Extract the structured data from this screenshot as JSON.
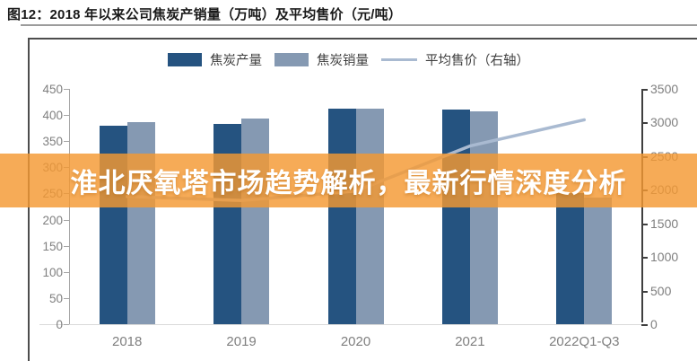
{
  "figure": {
    "title": "图12：2018 年以来公司焦炭产销量（万吨）及平均售价（元/吨）"
  },
  "overlay": {
    "text": "淮北厌氧塔市场趋势解析，最新行情深度分析",
    "background_color": "#F49832",
    "background_opacity": 0.82,
    "text_color": "#FFFFFF"
  },
  "legend": {
    "items": [
      {
        "label": "焦炭产量",
        "swatch": "bar",
        "color": "#255380"
      },
      {
        "label": "焦炭销量",
        "swatch": "bar",
        "color": "#8599B2"
      },
      {
        "label": "平均售价（右轴）",
        "swatch": "line",
        "color": "#A9BAD1"
      }
    ]
  },
  "chart_data": {
    "type": "bar",
    "subtype": "grouped-bars-with-line",
    "title": "图12：2018 年以来公司焦炭产销量（万吨）及平均售价（元/吨）",
    "categories": [
      "2018",
      "2019",
      "2020",
      "2021",
      "2022Q1-Q3"
    ],
    "series": [
      {
        "name": "焦炭产量",
        "type": "bar",
        "axis": "left",
        "color": "#255380",
        "values": [
          380,
          383,
          413,
          410,
          250
        ]
      },
      {
        "name": "焦炭销量",
        "type": "bar",
        "axis": "left",
        "color": "#8599B2",
        "values": [
          386,
          394,
          412,
          407,
          243
        ]
      },
      {
        "name": "平均售价（右轴）",
        "type": "line",
        "axis": "right",
        "color": "#A9BAD1",
        "values": [
          1900,
          1840,
          1980,
          2650,
          3040
        ]
      }
    ],
    "left_axis": {
      "label": "万吨",
      "min": 0,
      "max": 450,
      "step": 50,
      "ticks": [
        0,
        50,
        100,
        150,
        200,
        250,
        300,
        350,
        400,
        450
      ]
    },
    "right_axis": {
      "label": "元/吨",
      "min": 0,
      "max": 3500,
      "step": 500,
      "ticks": [
        0,
        500,
        1000,
        1500,
        2000,
        2500,
        3000,
        3500
      ]
    },
    "grid": false,
    "legend_position": "top",
    "colors": {
      "axis_text": "#7F7F7F",
      "left_axis_line": "#A6A6A6",
      "right_axis_line": "#3F3F3F",
      "x_axis_line": "#D9D9D9"
    }
  }
}
